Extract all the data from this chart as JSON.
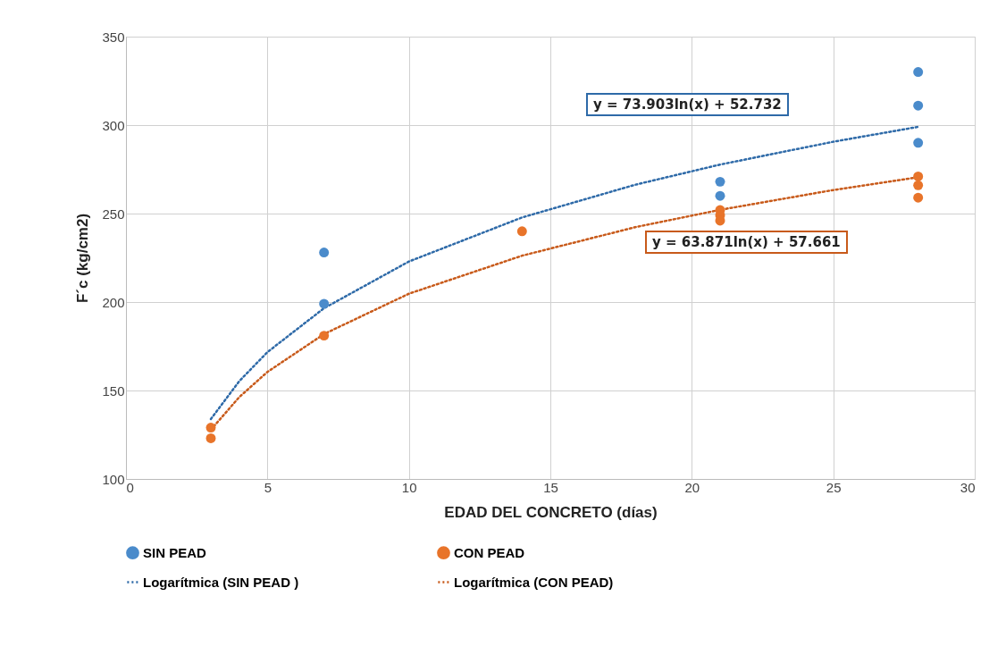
{
  "chart_data": {
    "type": "scatter",
    "xlabel": "EDAD DEL CONCRETO (días)",
    "ylabel": "F´c (kg/cm2)",
    "xlim": [
      0,
      30
    ],
    "xticks": [
      0,
      5,
      10,
      15,
      20,
      25,
      30
    ],
    "ylim": [
      100,
      350
    ],
    "yticks": [
      100,
      150,
      200,
      250,
      300,
      350
    ],
    "grid": true,
    "legend": "bottom",
    "series": [
      {
        "name": "SIN PEAD",
        "marker": "circle",
        "color": "#4a8bcb",
        "x": [
          7,
          7,
          21,
          21,
          28,
          28,
          28
        ],
        "values": [
          228,
          199,
          268,
          260,
          330,
          311,
          290
        ]
      },
      {
        "name": "CON PEAD",
        "marker": "circle",
        "color": "#e8742a",
        "x": [
          3,
          3,
          7,
          14,
          21,
          21,
          21,
          28,
          28,
          28
        ],
        "values": [
          129,
          123,
          181,
          240,
          252,
          249,
          246,
          271,
          266,
          259
        ]
      },
      {
        "name": "Logarítmica (SIN PEAD )",
        "type": "line",
        "line_style": "dotted",
        "color": "#2e6aa8",
        "x": [
          3,
          4,
          5,
          7,
          10,
          14,
          18,
          21,
          25,
          28
        ],
        "values": [
          133.9,
          155.2,
          171.7,
          196.5,
          222.9,
          247.8,
          266.3,
          277.7,
          290.6,
          299.0
        ]
      },
      {
        "name": "Logarítmica (CON PEAD)",
        "type": "line",
        "line_style": "dotted",
        "color": "#c85a1a",
        "x": [
          3,
          4,
          5,
          7,
          10,
          14,
          18,
          21,
          25,
          28
        ],
        "values": [
          127.8,
          146.2,
          160.5,
          181.9,
          204.7,
          226.2,
          242.3,
          252.1,
          263.3,
          270.5
        ]
      }
    ],
    "annotations": [
      "y = 73.903ln(x) + 52.732",
      "y = 63.871ln(x) + 57.661"
    ]
  }
}
